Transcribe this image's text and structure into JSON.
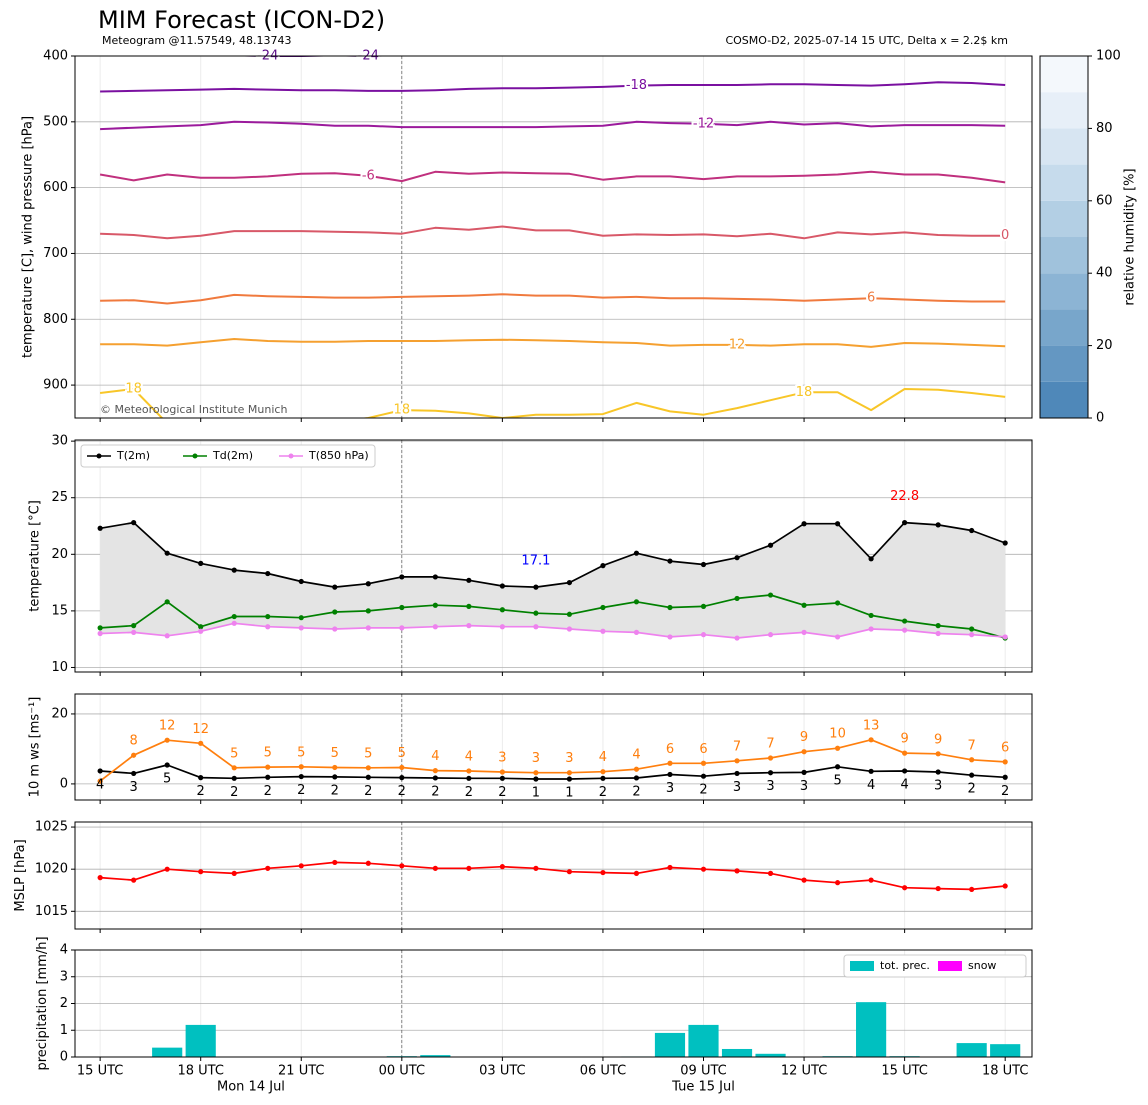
{
  "time_axis": {
    "x": [
      0,
      1,
      2,
      3,
      4,
      5,
      6,
      7,
      8,
      9,
      10,
      11,
      12,
      13,
      14,
      15,
      16,
      17,
      18,
      19,
      20,
      21,
      22,
      23,
      24,
      25,
      26,
      27
    ],
    "xlim": [
      -0.75,
      27.8
    ],
    "xticks": [
      {
        "value": 0,
        "label": "15 UTC"
      },
      {
        "value": 3,
        "label": "18 UTC"
      },
      {
        "value": 6,
        "label": "21 UTC"
      },
      {
        "value": 9,
        "label": "00 UTC"
      },
      {
        "value": 12,
        "label": "03 UTC"
      },
      {
        "value": 15,
        "label": "06 UTC"
      },
      {
        "value": 18,
        "label": "09 UTC"
      },
      {
        "value": 21,
        "label": "12 UTC"
      },
      {
        "value": 24,
        "label": "15 UTC"
      },
      {
        "value": 27,
        "label": "18 UTC"
      }
    ],
    "day_labels": [
      {
        "value": 4.5,
        "label": "Mon 14 Jul"
      },
      {
        "value": 18,
        "label": "Tue 15 Jul"
      }
    ],
    "midnight": 9
  },
  "chart_data": [
    {
      "type": "contour",
      "title": "MIM Forecast (ICON-D2)",
      "subtitle": "Meteogram @11.57549, 48.13743",
      "note": "COSMO-D2, 2025-07-14 15 UTC, Delta x = 2.2$ km",
      "credit": "© Meteorological Institute Munich",
      "ylabel": "temperature [C], wind pressure [hPa]",
      "ylim": [
        400,
        950
      ],
      "inverted": true,
      "yticks": [
        400,
        500,
        600,
        700,
        800,
        900
      ],
      "grid": true,
      "series": [
        {
          "name": "-24",
          "color": "#5a0c86",
          "values": [
            399,
            399,
            398,
            398,
            399,
            400,
            400,
            399,
            400,
            398,
            397,
            397,
            397,
            397,
            396,
            396,
            396,
            396,
            396,
            396,
            396,
            396,
            396,
            396,
            396,
            396,
            396,
            396
          ]
        },
        {
          "name": "-18",
          "color": "#7a10a0",
          "values": [
            454,
            453,
            452,
            451,
            450,
            451,
            452,
            452,
            453,
            453,
            452,
            450,
            449,
            449,
            448,
            447,
            445,
            444,
            444,
            444,
            443,
            443,
            444,
            445,
            443,
            440,
            441,
            444
          ]
        },
        {
          "name": "-12",
          "color": "#9b1a9c",
          "values": [
            511,
            509,
            507,
            505,
            500,
            501,
            503,
            506,
            506,
            508,
            508,
            508,
            508,
            508,
            507,
            506,
            500,
            502,
            503,
            505,
            500,
            504,
            502,
            507,
            505,
            505,
            505,
            506
          ]
        },
        {
          "name": "-6",
          "color": "#c0307e",
          "values": [
            580,
            589,
            580,
            585,
            585,
            583,
            579,
            578,
            582,
            590,
            576,
            579,
            577,
            578,
            579,
            588,
            583,
            583,
            587,
            583,
            583,
            582,
            580,
            576,
            580,
            580,
            585,
            592
          ]
        },
        {
          "name": "0",
          "color": "#d85868",
          "values": [
            670,
            672,
            677,
            673,
            666,
            666,
            666,
            667,
            668,
            670,
            661,
            664,
            659,
            665,
            665,
            673,
            671,
            672,
            671,
            674,
            670,
            677,
            668,
            671,
            668,
            672,
            673,
            673
          ]
        },
        {
          "name": "6",
          "color": "#f07a3e",
          "values": [
            772,
            771,
            776,
            771,
            763,
            765,
            766,
            767,
            767,
            766,
            765,
            764,
            762,
            764,
            764,
            767,
            766,
            768,
            768,
            769,
            770,
            772,
            770,
            768,
            770,
            772,
            773,
            773
          ]
        },
        {
          "name": "12",
          "color": "#f5a030",
          "values": [
            838,
            838,
            840,
            835,
            830,
            833,
            834,
            834,
            833,
            833,
            833,
            832,
            831,
            832,
            833,
            835,
            836,
            840,
            839,
            839,
            840,
            838,
            838,
            842,
            836,
            837,
            839,
            841
          ]
        },
        {
          "name": "18",
          "color": "#f8c628",
          "values": [
            912,
            906,
            958,
            965,
            968,
            966,
            962,
            956,
            950,
            938,
            939,
            943,
            950,
            945,
            945,
            944,
            927,
            940,
            945,
            935,
            923,
            911,
            911,
            938,
            906,
            907,
            912,
            918
          ]
        }
      ]
    },
    {
      "type": "line",
      "ylabel": "temperature [°C]",
      "ylim": [
        9.6,
        30.1
      ],
      "yticks": [
        10,
        15,
        20,
        25,
        30
      ],
      "grid": true,
      "legend": "upper left",
      "fill_between": [
        0,
        2
      ],
      "fill_color": "#e4e4e4",
      "series": [
        {
          "name": "T(2m)",
          "color": "#000000",
          "values": [
            22.3,
            22.8,
            20.1,
            19.2,
            18.6,
            18.3,
            17.6,
            17.1,
            17.4,
            18.0,
            18.0,
            17.7,
            17.2,
            17.1,
            17.5,
            19.0,
            20.1,
            19.4,
            19.1,
            19.7,
            20.8,
            22.7,
            22.7,
            19.6,
            22.8,
            22.6,
            22.1,
            21.0
          ]
        },
        {
          "name": "Td(2m)",
          "color": "#008000",
          "values": [
            13.5,
            13.7,
            15.8,
            13.6,
            14.5,
            14.5,
            14.4,
            14.9,
            15.0,
            15.3,
            15.5,
            15.4,
            15.1,
            14.8,
            14.7,
            15.3,
            15.8,
            15.3,
            15.4,
            16.1,
            16.4,
            15.5,
            15.7,
            14.6,
            14.1,
            13.7,
            13.4,
            12.6
          ]
        },
        {
          "name": "T(850 hPa)",
          "color": "#ee82ee",
          "values": [
            13.0,
            13.1,
            12.8,
            13.2,
            13.9,
            13.6,
            13.5,
            13.4,
            13.5,
            13.5,
            13.6,
            13.7,
            13.6,
            13.6,
            13.4,
            13.2,
            13.1,
            12.7,
            12.9,
            12.6,
            12.9,
            13.1,
            12.7,
            13.4,
            13.3,
            13.0,
            12.9,
            12.7
          ]
        }
      ],
      "annotations": [
        {
          "text": "17.1",
          "x": 13,
          "color": "#0000ff"
        },
        {
          "text": "22.8",
          "x": 24,
          "color": "#ff0000"
        }
      ]
    },
    {
      "type": "line",
      "ylabel": "10 m ws [ms⁻¹]",
      "ylim": [
        -4.6,
        25.7
      ],
      "yticks": [
        0,
        20
      ],
      "grid": true,
      "series": [
        {
          "color": "#000000",
          "label_position": "below",
          "values": [
            3.7,
            3.0,
            5.4,
            1.8,
            1.6,
            1.9,
            2.1,
            2.0,
            1.9,
            1.8,
            1.7,
            1.6,
            1.6,
            1.4,
            1.4,
            1.6,
            1.7,
            2.7,
            2.2,
            3.0,
            3.2,
            3.3,
            4.9,
            3.6,
            3.7,
            3.4,
            2.5,
            1.9
          ],
          "value_labels": [
            "4",
            "3",
            "5",
            "2",
            "2",
            "2",
            "2",
            "2",
            "2",
            "2",
            "2",
            "2",
            "2",
            "1",
            "1",
            "2",
            "2",
            "3",
            "2",
            "3",
            "3",
            "3",
            "5",
            "4",
            "4",
            "3",
            "2",
            "2"
          ]
        },
        {
          "color": "#ff7f0e",
          "label_position": "above",
          "values": [
            0.8,
            8.2,
            12.5,
            11.6,
            4.6,
            4.8,
            4.9,
            4.7,
            4.6,
            4.7,
            3.8,
            3.7,
            3.4,
            3.2,
            3.2,
            3.5,
            4.2,
            5.9,
            5.9,
            6.6,
            7.4,
            9.2,
            10.2,
            12.6,
            8.8,
            8.6,
            6.9,
            6.3
          ],
          "value_labels": [
            null,
            "8",
            "12",
            "12",
            "5",
            "5",
            "5",
            "5",
            "5",
            "5",
            "4",
            "4",
            "3",
            "3",
            "3",
            "4",
            "4",
            "6",
            "6",
            "7",
            "7",
            "9",
            "10",
            "13",
            "9",
            "9",
            "7",
            "6"
          ]
        }
      ]
    },
    {
      "type": "line",
      "ylabel": "MSLP [hPa]",
      "ylim": [
        1012.9,
        1025.6
      ],
      "yticks": [
        1015,
        1020,
        1025
      ],
      "grid": true,
      "series": [
        {
          "color": "#ff0000",
          "values": [
            1019.0,
            1018.7,
            1020.0,
            1019.7,
            1019.5,
            1020.1,
            1020.4,
            1020.8,
            1020.7,
            1020.4,
            1020.1,
            1020.1,
            1020.3,
            1020.1,
            1019.7,
            1019.6,
            1019.5,
            1020.2,
            1020.0,
            1019.8,
            1019.5,
            1018.7,
            1018.4,
            1018.7,
            1017.8,
            1017.7,
            1017.6,
            1018.0
          ]
        }
      ]
    },
    {
      "type": "bar",
      "ylabel": "precipitation [mm/h]",
      "ylim": [
        0,
        4
      ],
      "yticks": [
        0,
        1,
        2,
        3,
        4
      ],
      "grid": true,
      "legend": "upper right",
      "series": [
        {
          "name": "tot. prec.",
          "color": "#00c0c0",
          "values": [
            0,
            0,
            0.35,
            1.2,
            0,
            0,
            0,
            0,
            0,
            0.03,
            0.07,
            0,
            0,
            0,
            0,
            0,
            0.02,
            0.9,
            1.2,
            0.3,
            0.12,
            0,
            0.03,
            2.05,
            0.03,
            0,
            0.52,
            0.48
          ]
        },
        {
          "name": "snow",
          "color": "#ff00ff",
          "values": [
            0,
            0,
            0,
            0,
            0,
            0,
            0,
            0,
            0,
            0,
            0,
            0,
            0,
            0,
            0,
            0,
            0,
            0,
            0,
            0,
            0,
            0,
            0,
            0,
            0,
            0,
            0,
            0
          ]
        }
      ]
    },
    {
      "type": "colorbar",
      "label": "relative humidity [%]",
      "ylim": [
        0,
        100
      ],
      "yticks": [
        0,
        20,
        40,
        60,
        80,
        100
      ],
      "levels": [
        0,
        10,
        20,
        30,
        40,
        50,
        60,
        70,
        80,
        90,
        100
      ],
      "colors": [
        "#4f88b9",
        "#6497c2",
        "#78a6cb",
        "#8cb4d4",
        "#a0c2dc",
        "#b3cfe4",
        "#c6dbec",
        "#d7e5f2",
        "#e7eff8",
        "#f4f8fc"
      ]
    }
  ]
}
